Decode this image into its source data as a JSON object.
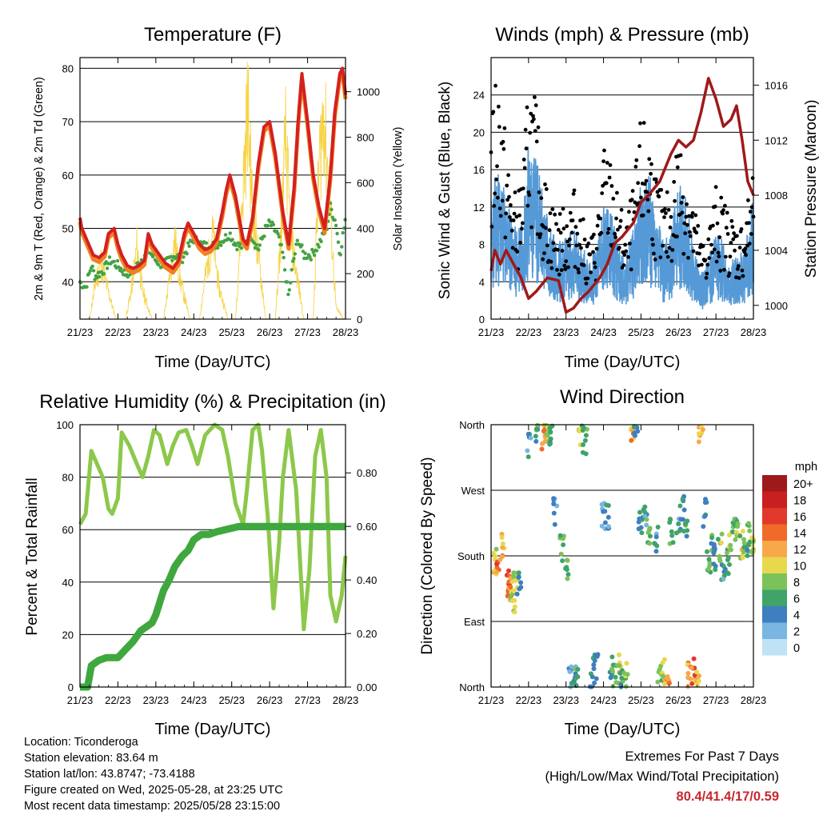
{
  "colors": {
    "temp_2m": "#d42020",
    "temp_9m": "#f08020",
    "dewpoint": "#43a343",
    "solar": "#f5d23c",
    "wind": "#5599d6",
    "gust": "#000000",
    "pressure": "#a01818",
    "rh": "#8cc84b",
    "precip": "#3ea83e",
    "extremes": "#c8282d"
  },
  "x_tick_labels": [
    "21/23",
    "22/23",
    "23/23",
    "24/23",
    "25/23",
    "26/23",
    "27/23",
    "28/23"
  ],
  "chart_data": [
    {
      "type": "line",
      "title": "Temperature (F)",
      "xlabel": "Time (Day/UTC)",
      "ylabel": "2m & 9m T (Red, Orange) & 2m Td (Green)",
      "ylabel_right": "Solar Insolation (Yellow)",
      "ylim": [
        33,
        82
      ],
      "yticks": [
        40,
        50,
        60,
        70,
        80
      ],
      "ylim_right": [
        0,
        1150
      ],
      "yticks_right": [
        0,
        200,
        400,
        600,
        800,
        1000
      ],
      "xlim": [
        0,
        7
      ],
      "series": [
        {
          "key": "temp",
          "axis": "left",
          "x": [
            0,
            0.05,
            0.2,
            0.35,
            0.5,
            0.65,
            0.75,
            0.9,
            1.0,
            1.1,
            1.25,
            1.4,
            1.55,
            1.7,
            1.8,
            1.9,
            2.0,
            2.1,
            2.25,
            2.45,
            2.6,
            2.75,
            2.85,
            3.0,
            3.15,
            3.3,
            3.45,
            3.6,
            3.75,
            3.85,
            3.95,
            4.1,
            4.2,
            4.3,
            4.4,
            4.55,
            4.7,
            4.85,
            5.0,
            5.15,
            5.35,
            5.5,
            5.65,
            5.75,
            5.85,
            6.0,
            6.15,
            6.3,
            6.45,
            6.6,
            6.72,
            6.85,
            6.92,
            7.0
          ],
          "y": [
            52,
            50,
            47.5,
            45,
            44.5,
            45.5,
            49,
            50,
            47,
            45,
            43,
            42.5,
            43,
            44,
            49,
            47,
            46,
            45,
            43.5,
            42.5,
            44,
            49,
            51,
            49,
            47,
            46,
            46.5,
            48,
            53,
            57,
            60,
            56,
            52,
            48,
            47,
            52,
            62,
            69,
            70,
            64,
            53,
            47,
            58,
            70,
            79,
            70,
            60,
            54,
            50,
            60,
            72,
            79,
            80,
            75
          ]
        },
        {
          "key": "dewpoint",
          "axis": "left",
          "x": [
            0,
            0.15,
            0.3,
            0.4,
            0.6,
            0.8,
            1.0,
            1.2,
            1.4,
            1.6,
            1.8,
            2.0,
            2.2,
            2.45,
            2.7,
            2.9,
            3.0,
            3.2,
            3.4,
            3.6,
            3.8,
            3.95,
            4.1,
            4.3,
            4.5,
            4.7,
            4.9,
            5.0,
            5.2,
            5.35,
            5.5,
            5.6,
            5.75,
            5.9,
            6.1,
            6.3,
            6.5,
            6.6,
            6.75,
            6.85,
            7.0
          ],
          "y": [
            40,
            39,
            43,
            41,
            42,
            44,
            43,
            41.5,
            42,
            44,
            46,
            44,
            43,
            45,
            44.5,
            47,
            48,
            47,
            46.5,
            47,
            48,
            49,
            47,
            46.5,
            49,
            46,
            50,
            51,
            49,
            45,
            37,
            43,
            48,
            45,
            45,
            47,
            50,
            54,
            51,
            45,
            52
          ]
        },
        {
          "key": "solar",
          "axis": "right",
          "x": [
            0.25,
            0.4,
            0.55,
            0.7,
            0.95,
            1.2,
            1.35,
            1.5,
            1.65,
            1.9,
            2.2,
            2.35,
            2.5,
            2.65,
            2.9,
            3.15,
            3.3,
            3.5,
            3.65,
            3.9,
            4.1,
            4.3,
            4.42,
            4.55,
            4.9,
            5.15,
            5.3,
            5.42,
            5.55,
            5.9,
            6.15,
            6.3,
            6.42,
            6.55,
            6.75,
            6.95
          ],
          "y": [
            0,
            180,
            310,
            180,
            0,
            0,
            150,
            380,
            150,
            0,
            0,
            200,
            420,
            200,
            0,
            0,
            220,
            450,
            180,
            0,
            0,
            700,
            1130,
            600,
            0,
            0,
            450,
            960,
            450,
            0,
            0,
            800,
            1120,
            750,
            60,
            0
          ]
        }
      ]
    },
    {
      "type": "scatter",
      "title": "Winds (mph) & Pressure (mb)",
      "xlabel": "Time (Day/UTC)",
      "ylabel": "Sonic Wind & Gust (Blue, Black)",
      "ylabel_right": "Station Pressure (Maroon)",
      "ylim": [
        0,
        28
      ],
      "yticks": [
        0,
        4,
        8,
        12,
        16,
        20,
        24
      ],
      "ylim_right": [
        999,
        1018
      ],
      "yticks_right": [
        1000,
        1004,
        1008,
        1012,
        1016
      ],
      "xlim": [
        0,
        7
      ],
      "series": [
        {
          "key": "wind_mean",
          "axis": "left",
          "x": [
            0,
            0.15,
            0.3,
            0.5,
            0.7,
            0.9,
            1.0,
            1.2,
            1.4,
            1.6,
            1.8,
            2.0,
            2.2,
            2.4,
            2.6,
            2.8,
            3.0,
            3.2,
            3.4,
            3.6,
            3.8,
            4.0,
            4.2,
            4.4,
            4.6,
            4.8,
            5.0,
            5.2,
            5.4,
            5.6,
            5.8,
            6.0,
            6.2,
            6.4,
            6.6,
            6.8,
            7.0
          ],
          "y": [
            8,
            10,
            9,
            7,
            6,
            9,
            12,
            11,
            8,
            6,
            5,
            5.5,
            6,
            5,
            4,
            4.5,
            8,
            7,
            5,
            4,
            6,
            9,
            10,
            7,
            5,
            6,
            9,
            8,
            5,
            3,
            4,
            6,
            5,
            4,
            4,
            5,
            8
          ]
        },
        {
          "key": "gust",
          "axis": "left",
          "x": [
            0,
            0.15,
            0.3,
            0.5,
            0.7,
            0.9,
            1.0,
            1.2,
            1.4,
            1.6,
            1.8,
            2.0,
            2.2,
            2.4,
            2.6,
            2.8,
            3.0,
            3.2,
            3.4,
            3.6,
            3.8,
            4.0,
            4.2,
            4.4,
            4.6,
            4.8,
            5.0,
            5.2,
            5.4,
            5.6,
            5.8,
            6.0,
            6.2,
            6.4,
            6.6,
            6.8,
            7.0
          ],
          "y": [
            14,
            20,
            16,
            11,
            9,
            13,
            19,
            16,
            11,
            9,
            8,
            8.5,
            10,
            8,
            6,
            7,
            13,
            12,
            9,
            7,
            10,
            15,
            15,
            11,
            9,
            10,
            14,
            12,
            9,
            6,
            7,
            10,
            9,
            8,
            7,
            8,
            12
          ]
        },
        {
          "key": "pressure",
          "axis": "right",
          "x": [
            0,
            0.1,
            0.25,
            0.4,
            0.6,
            0.8,
            1.0,
            1.2,
            1.5,
            1.8,
            2.0,
            2.2,
            2.4,
            2.6,
            2.9,
            3.1,
            3.3,
            3.5,
            3.8,
            4.0,
            4.2,
            4.5,
            4.8,
            5.0,
            5.2,
            5.4,
            5.6,
            5.8,
            6.0,
            6.2,
            6.4,
            6.55,
            6.7,
            6.85,
            7.0
          ],
          "y": [
            1002.5,
            1004,
            1003,
            1004,
            1003,
            1002,
            1000.5,
            1001,
            1002,
            1001.8,
            999.5,
            999.8,
            1000.5,
            1001,
            1002,
            1003,
            1004.5,
            1005,
            1006,
            1007.5,
            1008,
            1009,
            1011,
            1012,
            1011.5,
            1012,
            1014,
            1016.5,
            1015,
            1013,
            1013.5,
            1014.5,
            1012,
            1009,
            1008
          ]
        }
      ]
    },
    {
      "type": "line",
      "title": "Relative Humidity (%) & Precipitation (in)",
      "xlabel": "Time (Day/UTC)",
      "ylabel": "Percent & Total Rainfall",
      "ylim": [
        0,
        100
      ],
      "yticks": [
        0,
        20,
        40,
        60,
        80,
        100
      ],
      "ylim_right": [
        0,
        0.98
      ],
      "yticks_right": [
        0.0,
        0.2,
        0.4,
        0.6,
        0.8
      ],
      "ytick_labels_right": [
        "0.00",
        "0.20",
        "0.40",
        "0.60",
        "0.80"
      ],
      "xlim": [
        0,
        7
      ],
      "series": [
        {
          "key": "rh",
          "axis": "left",
          "x": [
            0,
            0.15,
            0.3,
            0.45,
            0.6,
            0.75,
            0.85,
            1.0,
            1.1,
            1.3,
            1.5,
            1.65,
            1.8,
            1.95,
            2.1,
            2.3,
            2.45,
            2.6,
            2.8,
            2.95,
            3.1,
            3.3,
            3.55,
            3.75,
            3.9,
            4.1,
            4.3,
            4.4,
            4.55,
            4.7,
            4.8,
            4.95,
            5.1,
            5.25,
            5.35,
            5.5,
            5.7,
            5.9,
            6.05,
            6.2,
            6.35,
            6.5,
            6.6,
            6.75,
            6.9,
            7.0
          ],
          "y": [
            62,
            66,
            90,
            85,
            80,
            68,
            66,
            72,
            97,
            92,
            85,
            80,
            88,
            98,
            96,
            85,
            92,
            97,
            98,
            92,
            85,
            96,
            100,
            98,
            88,
            70,
            62,
            75,
            98,
            100,
            90,
            65,
            30,
            55,
            80,
            98,
            75,
            22,
            45,
            88,
            98,
            80,
            35,
            25,
            35,
            50
          ]
        },
        {
          "key": "precip",
          "axis": "right",
          "x": [
            0,
            0.2,
            0.3,
            0.5,
            0.7,
            1.0,
            1.2,
            1.4,
            1.6,
            1.9,
            2.0,
            2.2,
            2.35,
            2.5,
            2.7,
            2.85,
            3.0,
            3.2,
            3.4,
            3.6,
            3.9,
            4.2,
            7.0
          ],
          "y": [
            0,
            0,
            0.08,
            0.1,
            0.11,
            0.11,
            0.14,
            0.17,
            0.21,
            0.24,
            0.27,
            0.36,
            0.4,
            0.45,
            0.49,
            0.51,
            0.55,
            0.57,
            0.57,
            0.58,
            0.59,
            0.6,
            0.6
          ]
        }
      ]
    },
    {
      "type": "scatter",
      "title": "Wind Direction",
      "xlabel": "Time (Day/UTC)",
      "ylabel": "Direction (Colored By Speed)",
      "yticks": [
        "North",
        "East",
        "South",
        "West",
        "North"
      ],
      "ylim": [
        0,
        360
      ],
      "xlim": [
        0,
        7
      ],
      "legend": {
        "title": "mph",
        "labels": [
          "20+",
          "18",
          "16",
          "14",
          "12",
          "10",
          "8",
          "6",
          "4",
          "2",
          "0"
        ],
        "colors": [
          "#9e1a1a",
          "#c8201e",
          "#e0392b",
          "#f06a2a",
          "#f7a84a",
          "#e8d84e",
          "#7cc25a",
          "#3fa36a",
          "#3e7fbf",
          "#79b6e1",
          "#bfe3f5"
        ]
      },
      "series": [
        {
          "key": "direction",
          "x": [
            0.1,
            0.2,
            0.3,
            0.45,
            0.5,
            0.55,
            0.6,
            0.65,
            0.75,
            1.0,
            1.2,
            1.4,
            1.5,
            1.55,
            1.6,
            1.7,
            1.9,
            2.0,
            2.1,
            2.2,
            2.3,
            2.4,
            2.5,
            2.7,
            2.8,
            3.0,
            3.1,
            3.2,
            3.3,
            3.4,
            3.5,
            3.6,
            3.75,
            3.85,
            4.0,
            4.1,
            4.2,
            4.4,
            4.5,
            4.6,
            4.7,
            4.8,
            5.0,
            5.1,
            5.2,
            5.3,
            5.4,
            5.5,
            5.6,
            5.7,
            5.8,
            5.9,
            6.0,
            6.1,
            6.2,
            6.3,
            6.4,
            6.5,
            6.6,
            6.7,
            6.8,
            6.9,
            7.0
          ],
          "y": [
            170,
            160,
            190,
            140,
            130,
            135,
            120,
            150,
            140,
            330,
            350,
            340,
            355,
            355,
            345,
            240,
            190,
            160,
            15,
            10,
            5,
            350,
            340,
            20,
            25,
            240,
            230,
            30,
            15,
            25,
            10,
            20,
            350,
            355,
            230,
            240,
            215,
            200,
            15,
            20,
            10,
            215,
            230,
            245,
            225,
            15,
            20,
            10,
            355,
            240,
            175,
            200,
            180,
            190,
            160,
            170,
            200,
            215,
            210,
            195,
            200,
            205,
            200
          ],
          "speed": [
            10,
            14,
            12,
            16,
            13,
            10,
            9,
            8,
            5,
            4,
            6,
            13,
            10,
            8,
            5,
            3,
            7,
            6,
            3,
            4,
            6,
            8,
            7,
            5,
            6,
            3,
            4,
            6,
            7,
            10,
            6,
            8,
            12,
            5,
            5,
            4,
            7,
            4,
            8,
            10,
            12,
            6,
            4,
            5,
            6,
            12,
            14,
            10,
            11,
            4,
            7,
            6,
            5,
            8,
            4,
            6,
            9,
            7,
            8,
            10,
            6,
            8,
            9
          ]
        }
      ]
    }
  ],
  "info": {
    "location": "Location: Ticonderoga",
    "elevation": "Station elevation: 83.64 m",
    "latlon": "Station lat/lon: 43.8747; -73.4188",
    "created": "Figure created on Wed, 2025-05-28, at 23:25 UTC",
    "timestamp": "Most recent data timestamp: 2025/05/28 23:15:00"
  },
  "extremes": {
    "title": "Extremes For Past 7 Days",
    "subtitle": "(High/Low/Max Wind/Total Precipitation)",
    "values": "80.4/41.4/17/0.59"
  }
}
